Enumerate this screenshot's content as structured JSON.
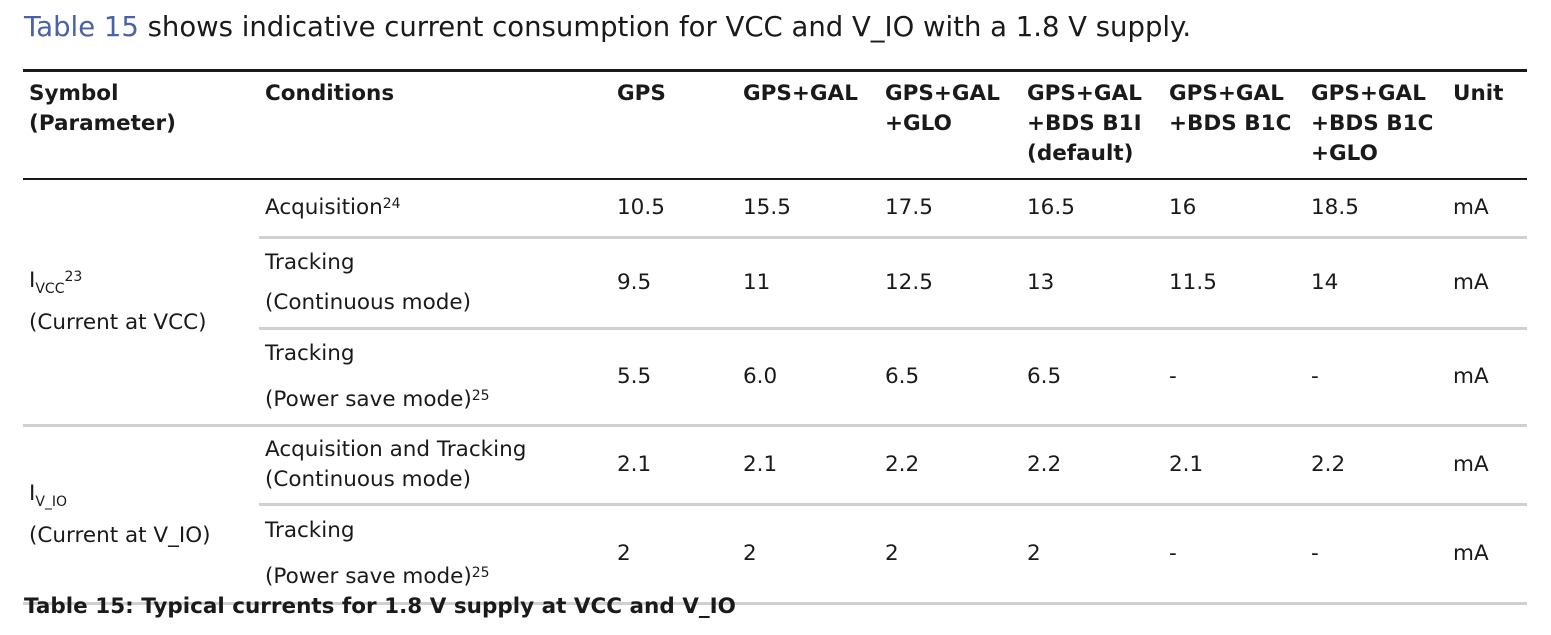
{
  "intro": {
    "table_ref": "Table 15",
    "text": " shows indicative current consumption for VCC and V_IO with a 1.8 V supply."
  },
  "table": {
    "headers": {
      "symbol_l1": "Symbol",
      "symbol_l2": "(Parameter)",
      "conditions": "Conditions",
      "gps": "GPS",
      "gps_gal": "GPS+GAL",
      "gps_gal_glo_l1": "GPS+GAL",
      "gps_gal_glo_l2": "+GLO",
      "bds_b1i_l1": "GPS+GAL",
      "bds_b1i_l2": "+BDS B1I",
      "bds_b1i_l3": "(default)",
      "bds_b1c_l1": "GPS+GAL",
      "bds_b1c_l2": "+BDS B1C",
      "bds_b1c_glo_l1": "GPS+GAL",
      "bds_b1c_glo_l2": "+BDS B1C",
      "bds_b1c_glo_l3": "+GLO",
      "unit": "Unit"
    },
    "groups": [
      {
        "symbol_main": "I",
        "symbol_sub": "VCC",
        "symbol_note": "23",
        "parameter": "(Current at VCC)"
      },
      {
        "symbol_main": "I",
        "symbol_sub": "V_IO",
        "parameter": "(Current at V_IO)"
      }
    ],
    "rows": [
      {
        "cond_l1": "Acquisition",
        "note": "24",
        "values": [
          "10.5",
          "15.5",
          "17.5",
          "16.5",
          "16",
          "18.5"
        ],
        "unit": "mA"
      },
      {
        "cond_l1": "Tracking",
        "cond_l2": "(Continuous mode)",
        "values": [
          "9.5",
          "11",
          "12.5",
          "13",
          "11.5",
          "14"
        ],
        "unit": "mA"
      },
      {
        "cond_l1": "Tracking",
        "cond_l2": "(Power save mode)",
        "note": "25",
        "values": [
          "5.5",
          "6.0",
          "6.5",
          "6.5",
          "-",
          "-"
        ],
        "unit": "mA"
      },
      {
        "cond_l1": "Acquisition and Tracking",
        "cond_l2": "(Continuous mode)",
        "values": [
          "2.1",
          "2.1",
          "2.2",
          "2.2",
          "2.1",
          "2.2"
        ],
        "unit": "mA"
      },
      {
        "cond_l1": "Tracking",
        "cond_l2": "(Power save mode)",
        "note": "25",
        "values": [
          "2",
          "2",
          "2",
          "2",
          "-",
          "-"
        ],
        "unit": "mA"
      }
    ]
  },
  "caption": "Table 15: Typical currents for 1.8 V supply at VCC and V_IO"
}
